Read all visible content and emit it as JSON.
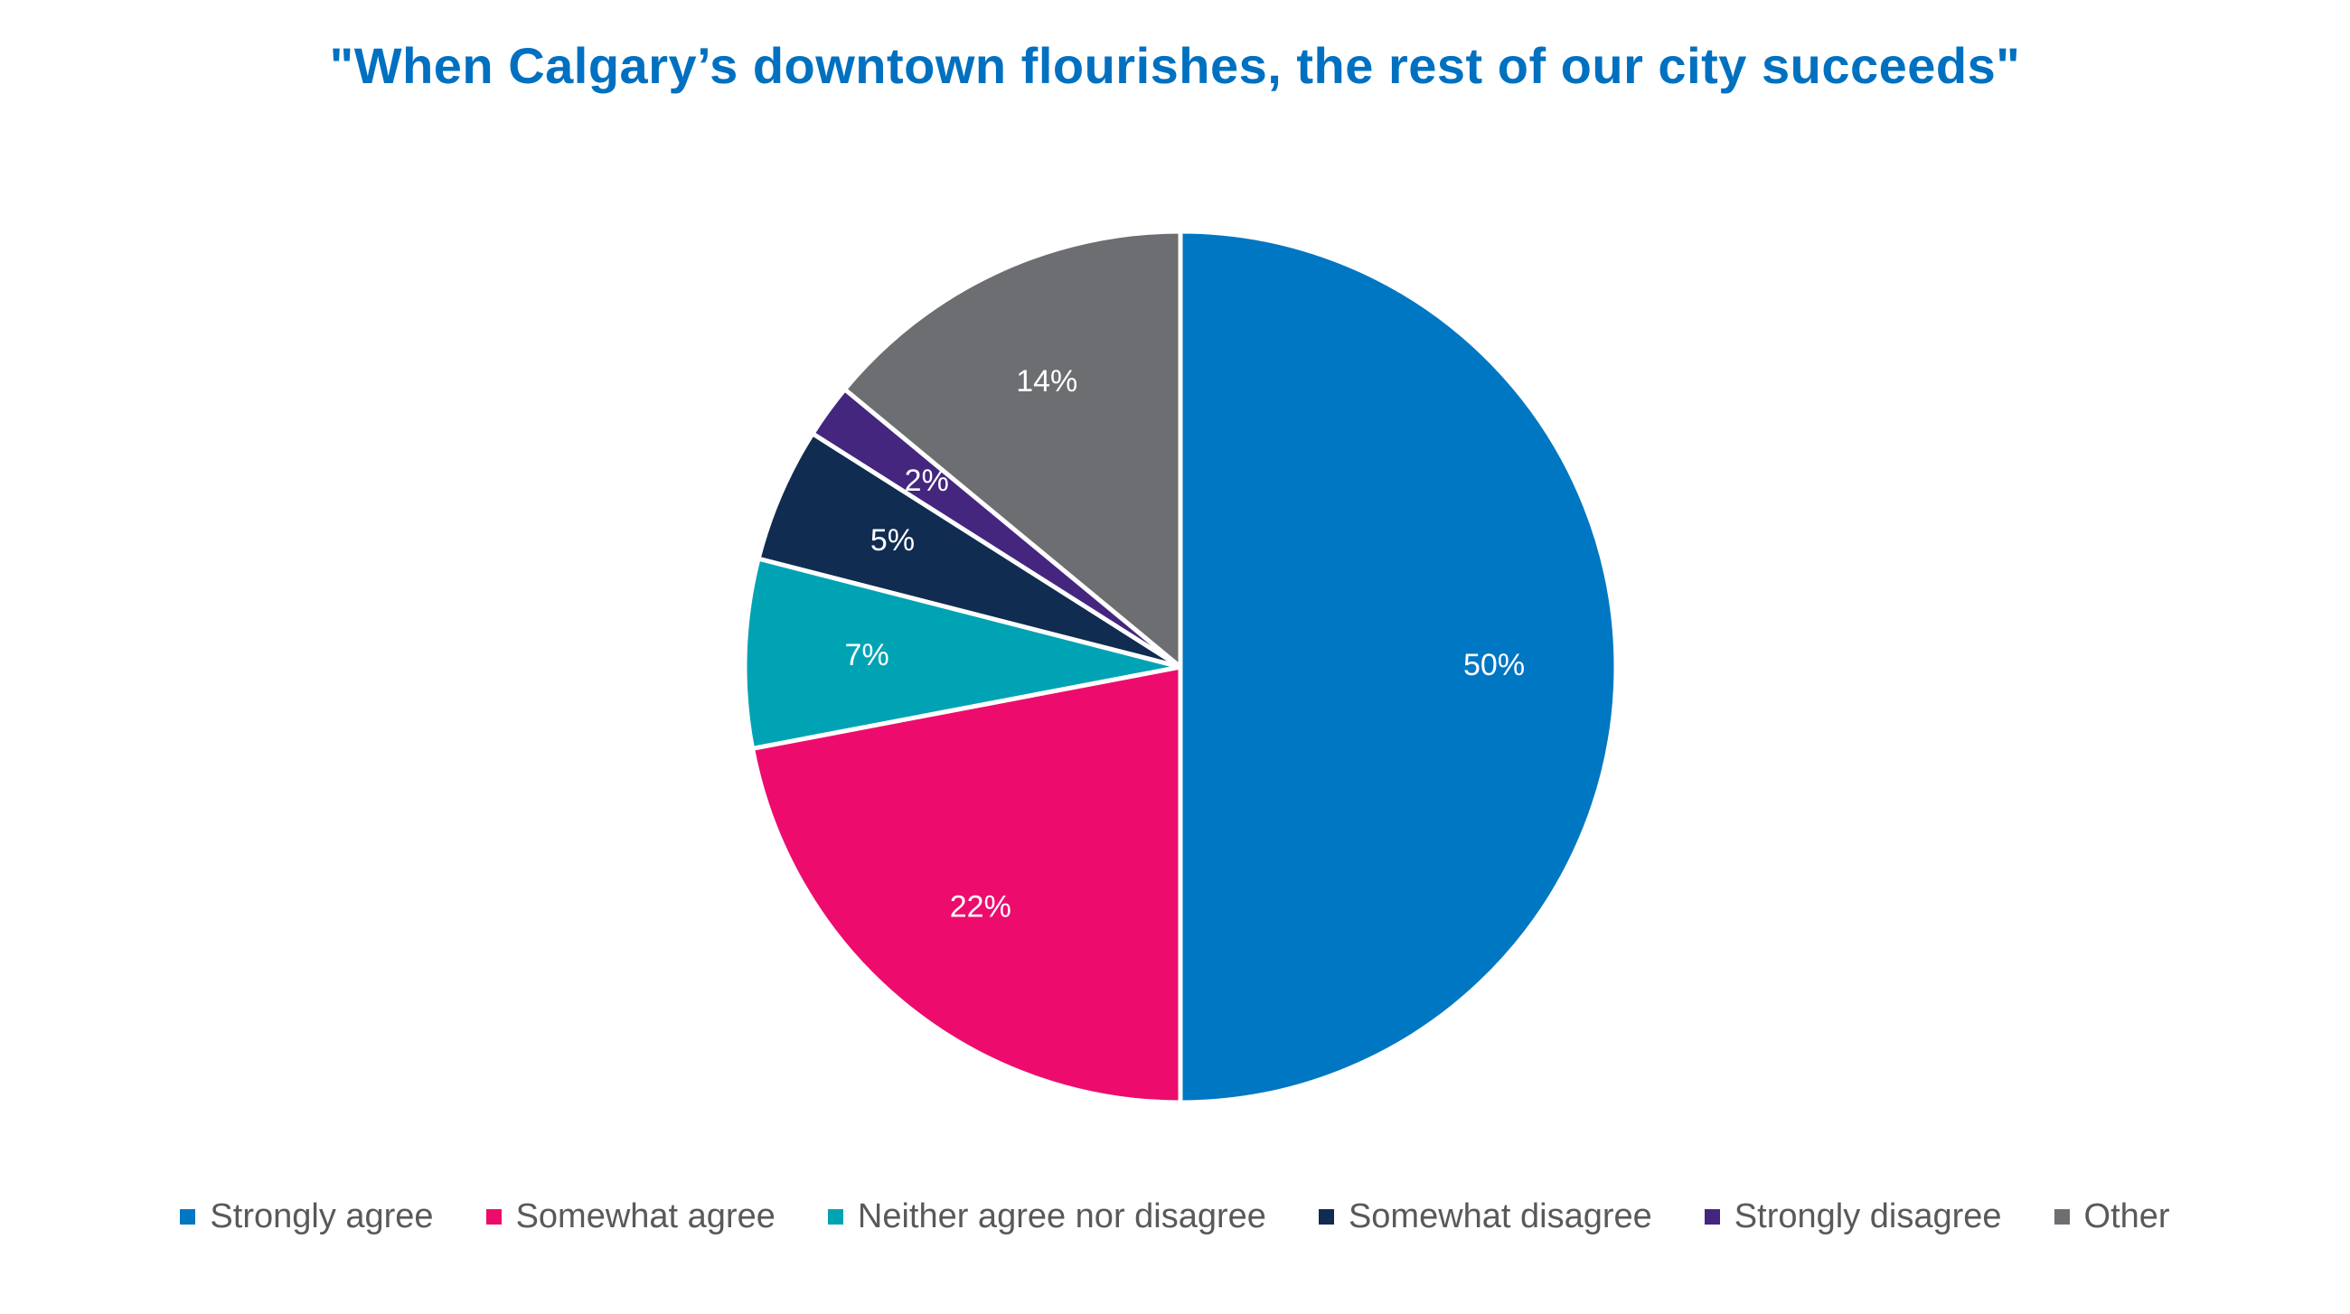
{
  "chart_data": {
    "type": "pie",
    "title": "\"When Calgary’s downtown flourishes, the rest of our city succeeds\"",
    "categories": [
      "Strongly agree",
      "Somewhat agree",
      "Neither agree nor disagree",
      "Somewhat disagree",
      "Strongly disagree",
      "Other"
    ],
    "values": [
      50,
      22,
      7,
      5,
      2,
      14
    ],
    "value_labels": [
      "50%",
      "22%",
      "7%",
      "5%",
      "2%",
      "14%"
    ],
    "colors": [
      "#0077c2",
      "#ed0c6e",
      "#00a3b4",
      "#102c50",
      "#44267f",
      "#6d6e71"
    ],
    "legend_position": "bottom",
    "start_angle": "12 o'clock",
    "direction": "clockwise"
  }
}
